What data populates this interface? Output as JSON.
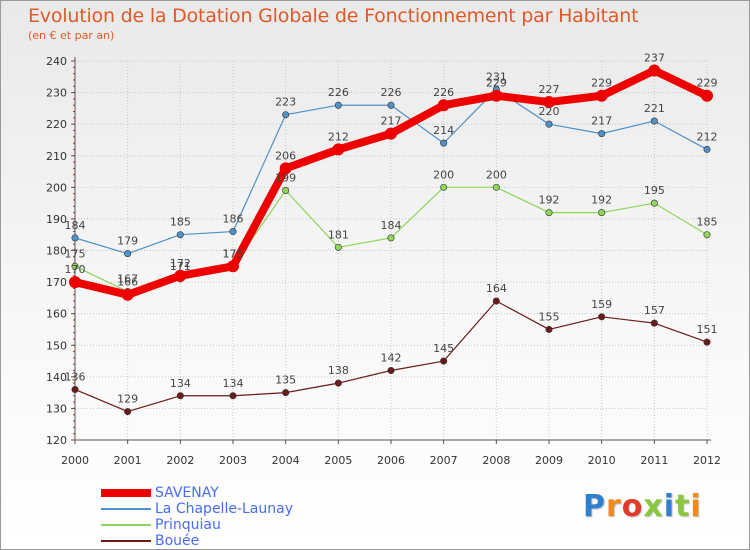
{
  "title": "Evolution de la Dotation Globale de Fonctionnement par Habitant",
  "subtitle": "(en € et par an)",
  "logo": {
    "text": "Proxiti",
    "colors": [
      "#2f7fd0",
      "#f08a1c",
      "#e03a2a",
      "#8cc63f",
      "#2f7fd0",
      "#8cc63f",
      "#f08a1c"
    ]
  },
  "chart_data": {
    "type": "line",
    "title": "Evolution de la Dotation Globale de Fonctionnement par Habitant",
    "subtitle": "(en € et par an)",
    "x": [
      "2000",
      "2001",
      "2002",
      "2003",
      "2004",
      "2005",
      "2006",
      "2007",
      "2008",
      "2009",
      "2010",
      "2011",
      "2012"
    ],
    "ylim": [
      120,
      240
    ],
    "yticks": [
      120,
      130,
      140,
      150,
      160,
      170,
      180,
      190,
      200,
      210,
      220,
      230,
      240
    ],
    "grid": true,
    "legend_position": "bottom-left",
    "series": [
      {
        "name": "SAVENAY",
        "color": "#ee0000",
        "values": [
          170,
          166,
          172,
          175,
          206,
          212,
          217,
          226,
          229,
          227,
          229,
          237,
          229
        ]
      },
      {
        "name": "La Chapelle-Launay",
        "color": "#4f91c8",
        "values": [
          184,
          179,
          185,
          186,
          223,
          226,
          226,
          214,
          231,
          220,
          217,
          221,
          212
        ]
      },
      {
        "name": "Prinquiau",
        "color": "#8fd65a",
        "values": [
          175,
          167,
          171,
          175,
          199,
          181,
          184,
          200,
          200,
          192,
          192,
          195,
          185
        ]
      },
      {
        "name": "Bouée",
        "color": "#6b1a1a",
        "values": [
          136,
          129,
          134,
          134,
          135,
          138,
          142,
          145,
          164,
          155,
          159,
          157,
          151
        ]
      }
    ]
  }
}
